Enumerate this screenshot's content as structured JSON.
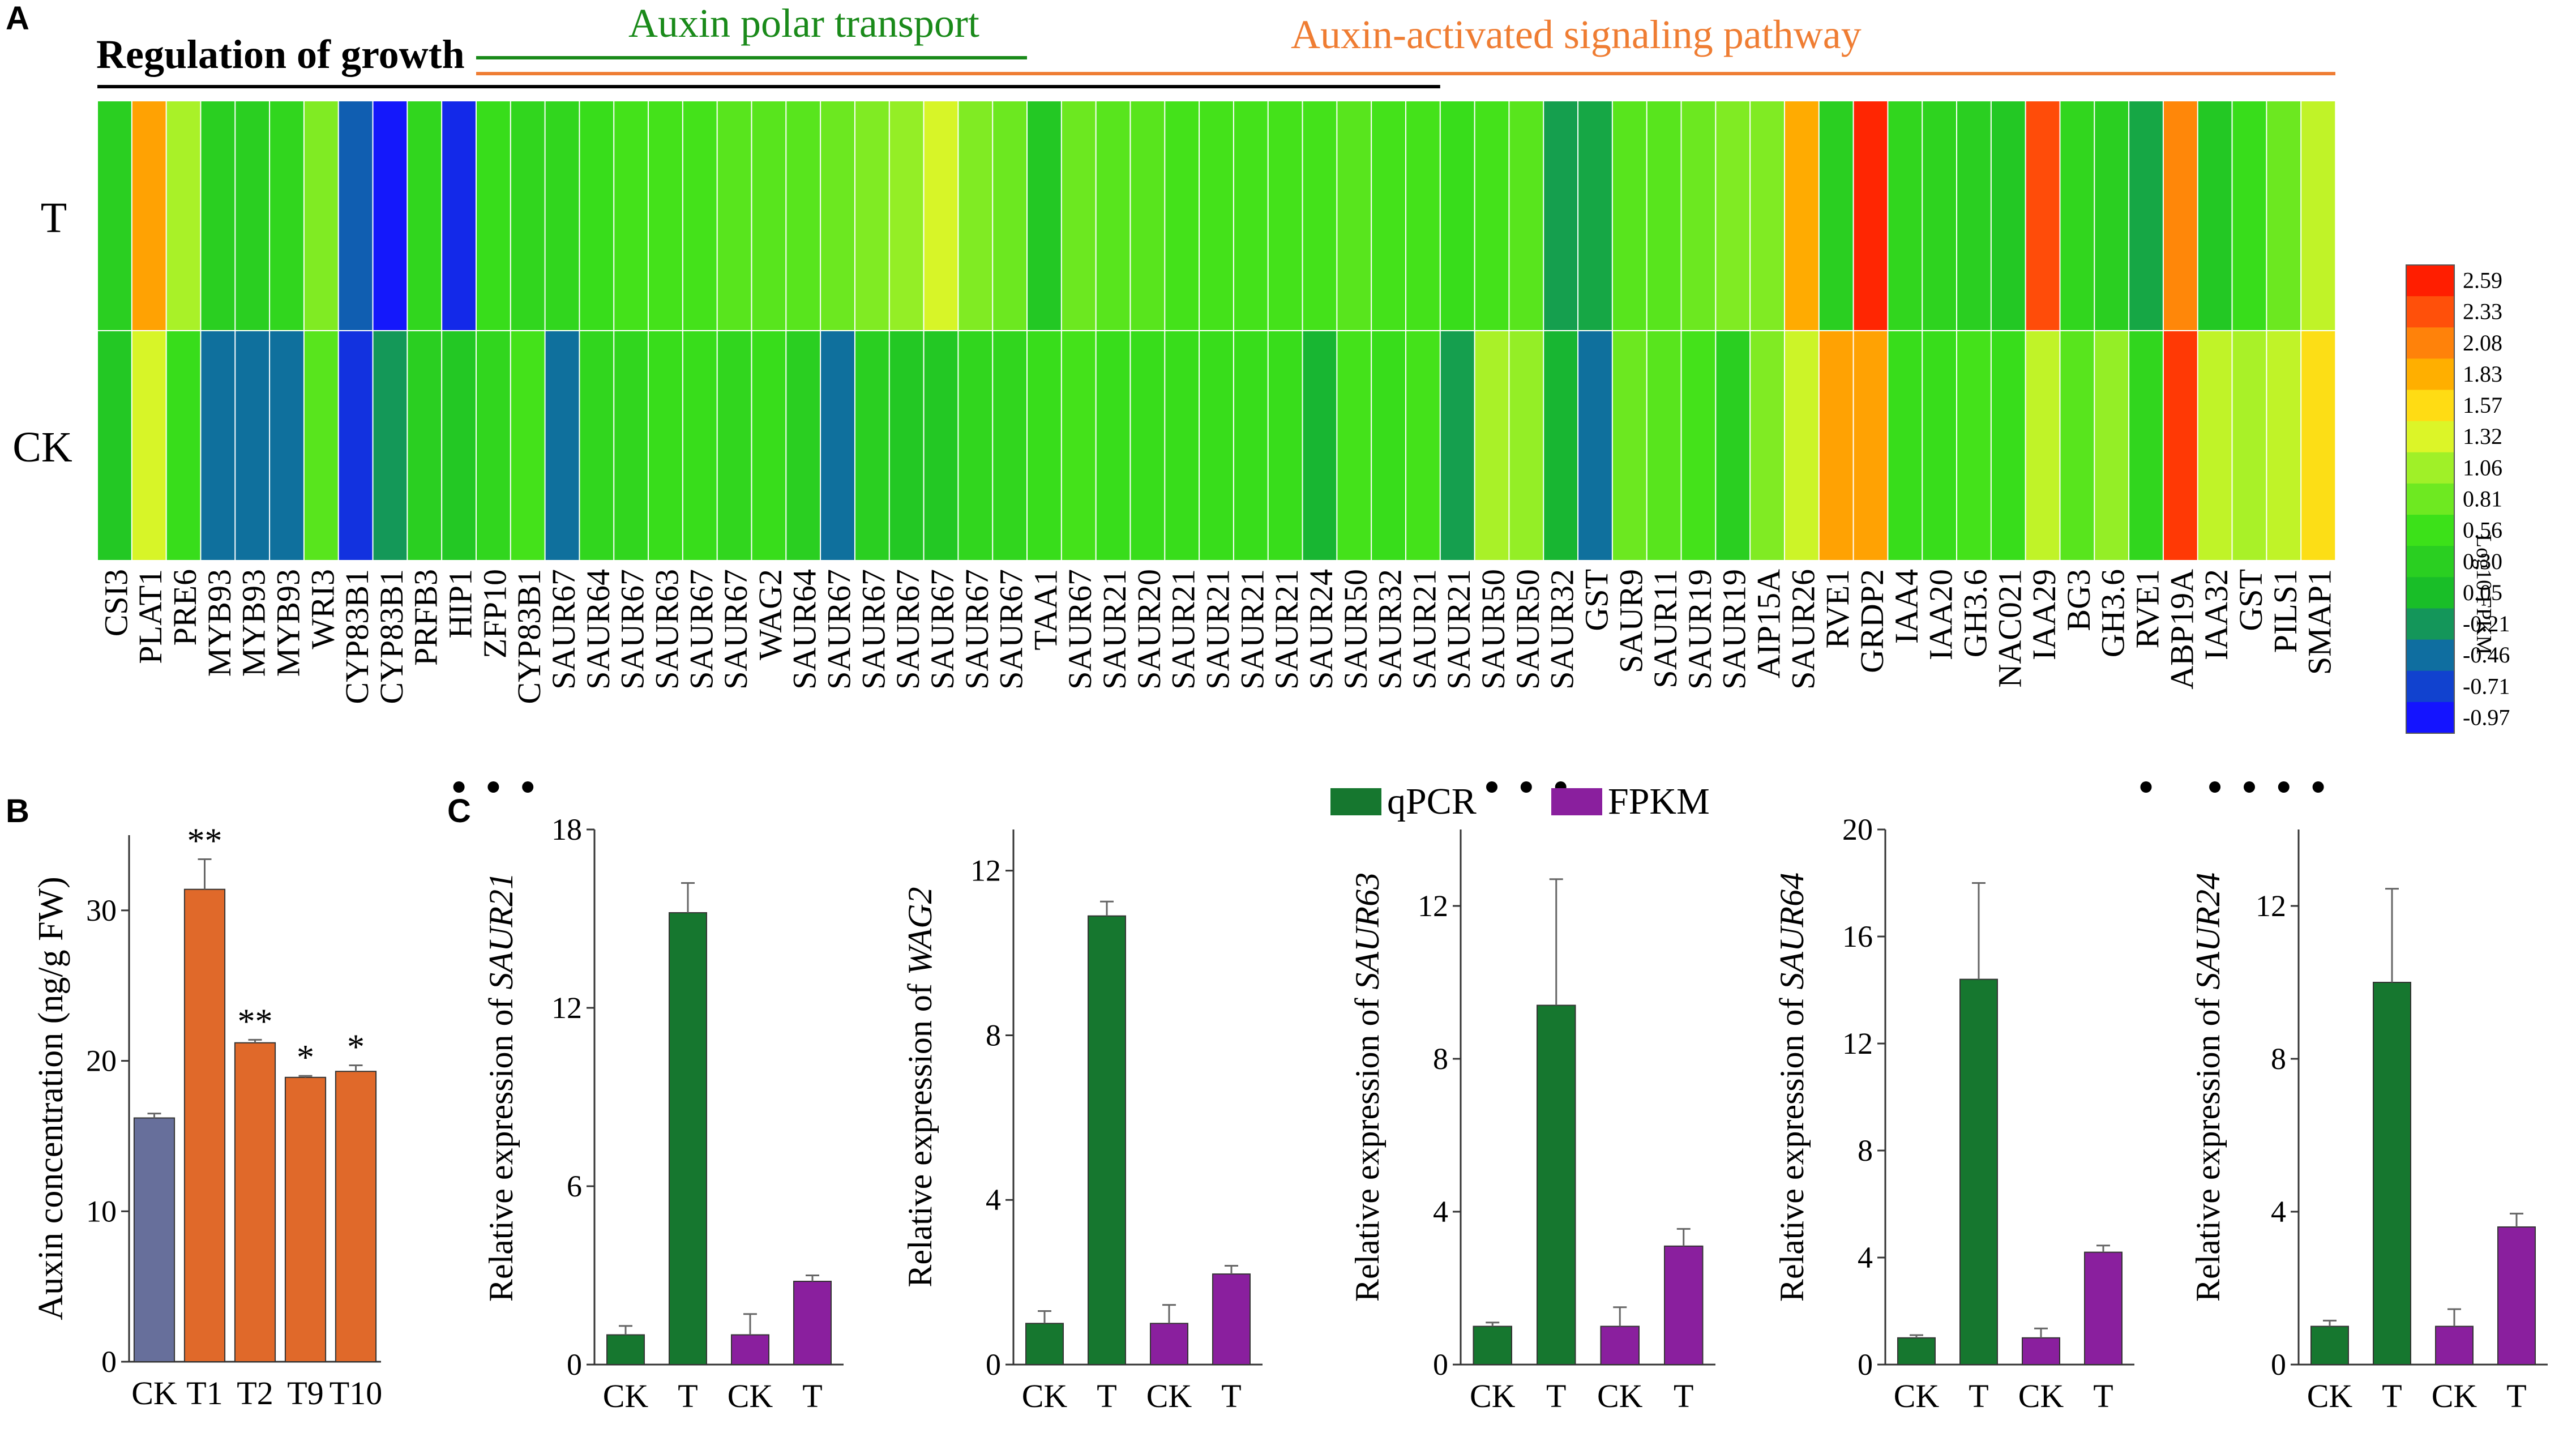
{
  "panels": {
    "a": {
      "label": "A",
      "categories": {
        "growth": {
          "label": "Regulation of growth",
          "color": "#000000"
        },
        "polar": {
          "label": "Auxin polar transport",
          "color": "#1a8a1a"
        },
        "signal": {
          "label": "Auxin-activated signaling pathway",
          "color": "#ef7d33"
        }
      },
      "row_labels": [
        "T",
        "CK"
      ],
      "colorbar": {
        "title": "Log10 FPKM",
        "ticks": [
          "2.59",
          "2.33",
          "2.08",
          "1.83",
          "1.57",
          "1.32",
          "1.06",
          "0.81",
          "0.56",
          "0.30",
          "0.05",
          "-0.21",
          "-0.46",
          "-0.71",
          "-0.97"
        ]
      }
    },
    "b": {
      "label": "B"
    },
    "c": {
      "label": "C"
    }
  },
  "chart_data": [
    {
      "type": "heatmap",
      "title": "",
      "xlabel": "",
      "ylabel": "",
      "rows": [
        "T",
        "CK"
      ],
      "genes": [
        "CSI3",
        "PLAT1",
        "PRE6",
        "MYB93",
        "MYB93",
        "MYB93",
        "WRI3",
        "CYP83B1",
        "CYP83B1",
        "PRFB3",
        "HIP1",
        "ZFP10",
        "CYP83B1",
        "SAUR67",
        "SAUR64",
        "SAUR67",
        "SAUR63",
        "SAUR67",
        "SAUR67",
        "WAG2",
        "SAUR64",
        "SAUR67",
        "SAUR67",
        "SAUR67",
        "SAUR67",
        "SAUR67",
        "SAUR67",
        "TAA1",
        "SAUR67",
        "SAUR21",
        "SAUR20",
        "SAUR21",
        "SAUR21",
        "SAUR21",
        "SAUR21",
        "SAUR24",
        "SAUR50",
        "SAUR32",
        "SAUR21",
        "SAUR21",
        "SAUR50",
        "SAUR50",
        "SAUR32",
        "GST",
        "SAUR9",
        "SAUR11",
        "SAUR19",
        "SAUR19",
        "AIP15A",
        "SAUR26",
        "RVE1",
        "GRDP2",
        "IAA4",
        "IAA20",
        "GH3.6",
        "NAC021",
        "IAA29",
        "BG3",
        "GH3.6",
        "RVE1",
        "ABP19A",
        "IAA32",
        "GST",
        "PILS1",
        "SMAP1"
      ],
      "dots": [
        false,
        false,
        false,
        false,
        false,
        false,
        false,
        false,
        false,
        false,
        true,
        true,
        true,
        false,
        false,
        false,
        false,
        false,
        false,
        false,
        false,
        false,
        false,
        false,
        false,
        false,
        false,
        false,
        false,
        false,
        false,
        false,
        false,
        false,
        false,
        false,
        false,
        false,
        false,
        false,
        true,
        true,
        true,
        false,
        false,
        false,
        false,
        false,
        false,
        false,
        false,
        false,
        false,
        false,
        false,
        false,
        false,
        false,
        false,
        true,
        false,
        true,
        true,
        true,
        true
      ],
      "values_T": [
        0.3,
        1.9,
        1.1,
        0.3,
        0.3,
        0.4,
        0.9,
        -0.55,
        -0.95,
        0.4,
        -0.85,
        0.5,
        0.4,
        0.4,
        0.5,
        0.6,
        0.6,
        0.6,
        0.7,
        0.7,
        0.7,
        0.8,
        0.9,
        1.0,
        1.3,
        0.9,
        0.8,
        0.2,
        0.8,
        0.7,
        0.7,
        0.6,
        0.6,
        0.6,
        0.6,
        0.6,
        0.7,
        0.6,
        0.6,
        0.5,
        0.6,
        0.7,
        -0.15,
        -0.1,
        0.7,
        0.7,
        0.8,
        0.9,
        0.9,
        1.85,
        0.3,
        2.55,
        0.4,
        0.35,
        0.3,
        0.2,
        2.35,
        0.4,
        0.3,
        -0.1,
        2.05,
        0.2,
        0.5,
        0.8,
        1.2
      ],
      "values_CK": [
        0.2,
        1.3,
        0.5,
        -0.45,
        -0.45,
        -0.45,
        0.7,
        -0.8,
        -0.2,
        0.3,
        0.2,
        0.4,
        0.6,
        -0.45,
        0.4,
        0.4,
        0.5,
        0.5,
        0.4,
        0.5,
        0.3,
        -0.45,
        0.3,
        0.2,
        0.2,
        0.4,
        0.4,
        0.5,
        0.6,
        0.5,
        0.5,
        0.5,
        0.5,
        0.5,
        0.5,
        0.0,
        0.6,
        0.5,
        0.6,
        -0.15,
        1.1,
        1.0,
        0.0,
        -0.45,
        0.8,
        0.7,
        0.6,
        0.3,
        0.9,
        1.25,
        1.9,
        1.9,
        0.5,
        0.5,
        0.6,
        0.5,
        1.2,
        0.7,
        1.0,
        0.4,
        2.45,
        1.2,
        1.1,
        1.2,
        1.55
      ],
      "group_spans": [
        {
          "group": "growth",
          "from": 0,
          "to": 38
        },
        {
          "group": "polar",
          "from": 11,
          "to": 26
        },
        {
          "group": "signal",
          "from": 11,
          "to": 64
        }
      ]
    },
    {
      "type": "bar",
      "title": "",
      "xlabel": "",
      "ylabel": "Auxin concentration (ng/g FW)",
      "categories": [
        "CK",
        "T1",
        "T2",
        "T9",
        "T10"
      ],
      "values": [
        16.2,
        31.4,
        21.2,
        18.9,
        19.3
      ],
      "errors": [
        0.3,
        2.0,
        0.2,
        0.1,
        0.4
      ],
      "significance": [
        "",
        "**",
        "**",
        "*",
        "*"
      ],
      "colors": [
        "#676f9b",
        "#e0692a",
        "#e0692a",
        "#e0692a",
        "#e0692a"
      ],
      "yticks": [
        0,
        10,
        20,
        30
      ],
      "ylim": [
        0,
        35
      ]
    },
    {
      "type": "bar",
      "gene": "SAUR21",
      "ylabel_prefix": "Relative expression of ",
      "categories": [
        "CK",
        "T",
        "CK",
        "T"
      ],
      "values": [
        1.0,
        15.2,
        1.0,
        2.8
      ],
      "errors": [
        0.3,
        1.0,
        0.7,
        0.2
      ],
      "yticks": [
        0,
        6,
        12,
        18
      ],
      "ylim": [
        0,
        18
      ]
    },
    {
      "type": "bar",
      "gene": "WAG2",
      "ylabel_prefix": "Relative expression of ",
      "categories": [
        "CK",
        "T",
        "CK",
        "T"
      ],
      "values": [
        1.0,
        10.9,
        1.0,
        2.2
      ],
      "errors": [
        0.3,
        0.35,
        0.45,
        0.2
      ],
      "yticks": [
        0,
        4,
        8,
        12
      ],
      "ylim": [
        0,
        13
      ]
    },
    {
      "type": "bar",
      "gene": "SAUR63",
      "ylabel_prefix": "Relative expression of ",
      "categories": [
        "CK",
        "T",
        "CK",
        "T"
      ],
      "values": [
        1.0,
        9.4,
        1.0,
        3.1
      ],
      "errors": [
        0.1,
        3.3,
        0.5,
        0.45
      ],
      "yticks": [
        0,
        4,
        8,
        12
      ],
      "ylim": [
        0,
        14
      ]
    },
    {
      "type": "bar",
      "gene": "SAUR64",
      "ylabel_prefix": "Relative expression of ",
      "categories": [
        "CK",
        "T",
        "CK",
        "T"
      ],
      "values": [
        1.0,
        14.4,
        1.0,
        4.2
      ],
      "errors": [
        0.1,
        3.6,
        0.35,
        0.25
      ],
      "yticks": [
        0,
        4,
        8,
        12,
        16,
        20
      ],
      "ylim": [
        0,
        20
      ]
    },
    {
      "type": "bar",
      "gene": "SAUR24",
      "ylabel_prefix": "Relative expression of ",
      "categories": [
        "CK",
        "T",
        "CK",
        "T"
      ],
      "values": [
        1.0,
        10.0,
        1.0,
        3.6
      ],
      "errors": [
        0.15,
        2.45,
        0.45,
        0.35
      ],
      "yticks": [
        0,
        4,
        8,
        12
      ],
      "ylim": [
        0,
        14
      ]
    }
  ],
  "legend": {
    "items": [
      {
        "label": "qPCR",
        "color": "#16772f"
      },
      {
        "label": "FPKM",
        "color": "#8a1f9e"
      }
    ]
  }
}
